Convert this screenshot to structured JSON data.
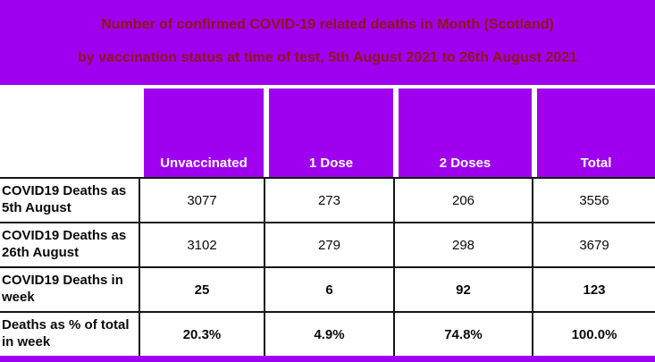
{
  "colors": {
    "purple": "#A000F0",
    "title_text": "#8B1717"
  },
  "banner": {
    "line1": "Number of confirmed COVID-19 related deaths in Month (Scotland)",
    "line2": "by vaccination status at time of test, 5th August 2021 to 26th August 2021"
  },
  "chart_data": {
    "type": "table",
    "title": "Number of confirmed COVID-19 related deaths in Month (Scotland)",
    "subtitle": "by vaccination status at time of test, 5th August 2021 to 26th August 2021",
    "columns": [
      "Unvaccinated",
      "1 Dose",
      "2 Doses",
      "Total"
    ],
    "rows": [
      {
        "label": "COVID19 Deaths as 5th August",
        "values": [
          "3077",
          "273",
          "206",
          "3556"
        ]
      },
      {
        "label": "COVID19 Deaths as 26th August",
        "values": [
          "3102",
          "279",
          "298",
          "3679"
        ]
      },
      {
        "label": "COVID19 Deaths in week",
        "values": [
          "25",
          "6",
          "92",
          "123"
        ]
      },
      {
        "label": "Deaths as % of total in week",
        "values": [
          "20.3%",
          "4.9%",
          "74.8%",
          "100.0%"
        ]
      }
    ]
  }
}
